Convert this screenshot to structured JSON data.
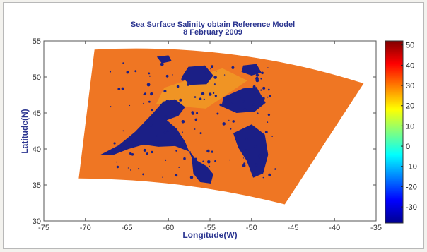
{
  "chart_data": {
    "type": "heatmap",
    "title": "Sea Surface Salinity obtain Reference Model",
    "subtitle": "8 February 2009",
    "xlabel": "Longitude(W)",
    "ylabel": "Latitude(N)",
    "xlim": [
      -75,
      -35
    ],
    "ylim": [
      30,
      55
    ],
    "xticks": [
      -75,
      -70,
      -65,
      -60,
      -55,
      -50,
      -45,
      -40,
      -35
    ],
    "yticks": [
      30,
      35,
      40,
      45,
      50,
      55
    ],
    "colorbar": {
      "range": [
        -38,
        52
      ],
      "ticks": [
        -30,
        -20,
        -10,
        0,
        10,
        20,
        30,
        40,
        50
      ],
      "colormap": "jet"
    },
    "swath_value": 31,
    "corner_region_value": 26,
    "land_value": -30,
    "grid": false,
    "colors": {
      "swath": "#ef7623",
      "swath_shade": "#e67a2b",
      "corner_region": "#f09a24",
      "land": "#1b1f86",
      "text": "#2b3590"
    }
  }
}
